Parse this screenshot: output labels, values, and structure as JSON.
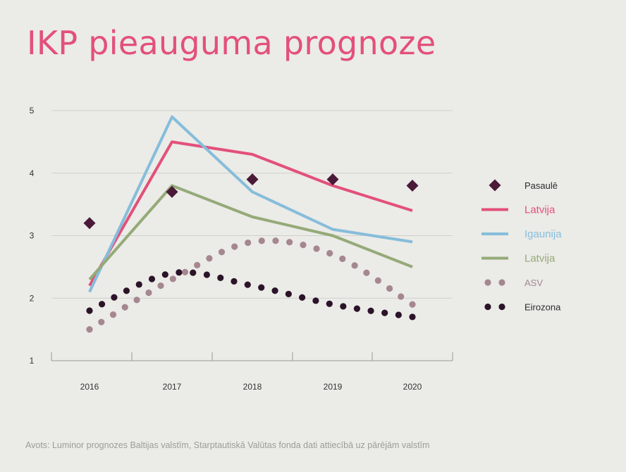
{
  "title": "IKP pieauguma prognoze",
  "source": "Avots: Luminor prognozes Baltijas valstīm, Starptautiskā Valūtas fonda dati attiecībā uz pārējām valstīm",
  "colors": {
    "title": "#e3507a",
    "pasaule": "#4a1a38",
    "latvija_red": "#e3507a",
    "igaunija": "#86bddb",
    "latvija_green": "#95aa78",
    "asv": "#a58790",
    "eirozona": "#2b1328",
    "grid": "#cfcfcb",
    "axis": "#555555"
  },
  "chart_data": {
    "type": "line",
    "x": [
      "2016",
      "2017",
      "2018",
      "2019",
      "2020"
    ],
    "ylim": [
      1,
      5
    ],
    "yticks": [
      "1",
      "2",
      "3",
      "4",
      "5"
    ],
    "grid": true,
    "legend_position": "right",
    "series": [
      {
        "name": "Pasaulē",
        "style": "diamond-markers",
        "color": "#4a1a38",
        "values": [
          3.2,
          3.7,
          3.9,
          3.9,
          3.8
        ]
      },
      {
        "name": "Latvija",
        "style": "solid",
        "color": "#e3507a",
        "values": [
          2.2,
          4.5,
          4.3,
          3.8,
          3.4
        ]
      },
      {
        "name": "Igaunija",
        "style": "solid",
        "color": "#86bddb",
        "values": [
          2.1,
          4.9,
          3.7,
          3.1,
          2.9
        ]
      },
      {
        "name": "Latvija",
        "style": "solid",
        "color": "#95aa78",
        "values": [
          2.3,
          3.8,
          3.3,
          3.0,
          2.5
        ]
      },
      {
        "name": "ASV",
        "style": "dotted",
        "color": "#a58790",
        "values": [
          1.5,
          2.3,
          2.9,
          2.7,
          1.9
        ]
      },
      {
        "name": "Eirozona",
        "style": "dotted",
        "color": "#2b1328",
        "values": [
          1.8,
          2.4,
          2.2,
          1.9,
          1.7
        ]
      }
    ]
  }
}
